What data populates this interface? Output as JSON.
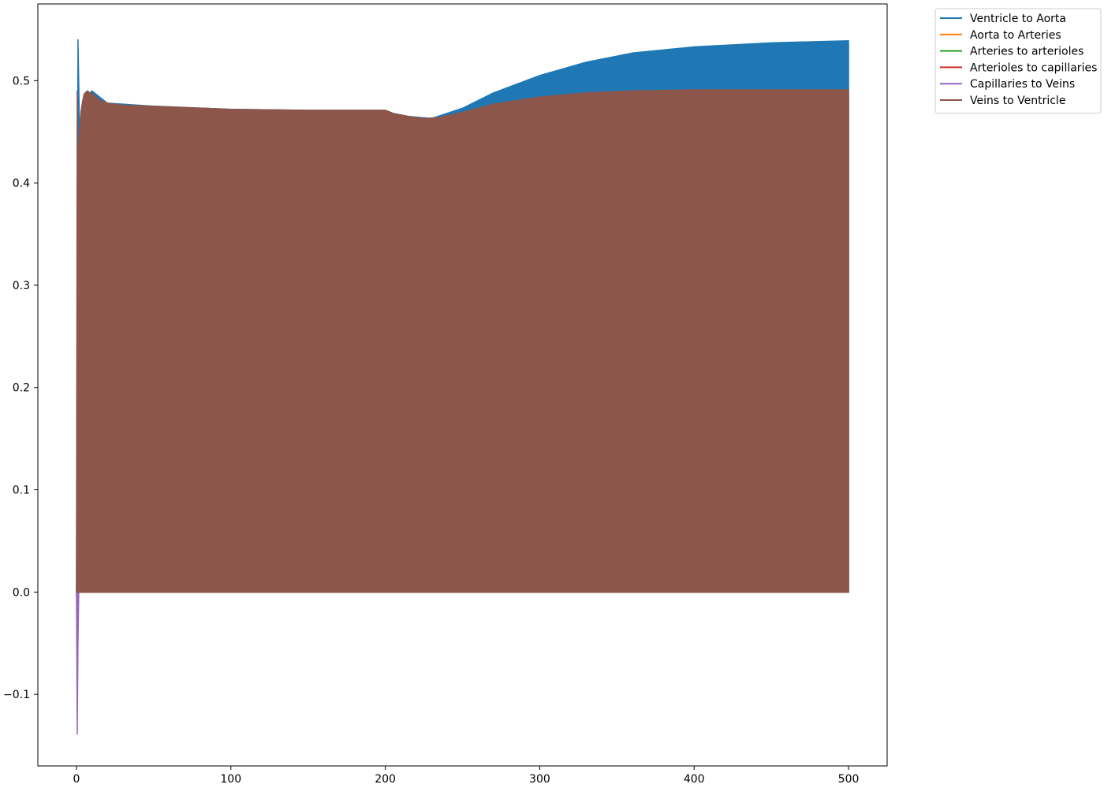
{
  "chart_data": {
    "type": "area",
    "title": "",
    "xlabel": "",
    "ylabel": "",
    "xlim": [
      -25,
      525
    ],
    "ylim": [
      -0.17,
      0.575
    ],
    "x_ticks": [
      0,
      100,
      200,
      300,
      400,
      500
    ],
    "x_tick_labels": [
      "0",
      "100",
      "200",
      "300",
      "400",
      "500"
    ],
    "y_ticks": [
      -0.1,
      0.0,
      0.1,
      0.2,
      0.3,
      0.4,
      0.5
    ],
    "y_tick_labels": [
      "−0.1",
      "0.0",
      "0.1",
      "0.2",
      "0.3",
      "0.4",
      "0.5"
    ],
    "grid": false,
    "legend_position": "outside-top-right",
    "series": [
      {
        "name": "Ventricle to Aorta",
        "color": "#1f77b4",
        "x": [
          0,
          1,
          2,
          5,
          10,
          20,
          50,
          100,
          150,
          200,
          205,
          215,
          230,
          250,
          270,
          300,
          330,
          360,
          400,
          450,
          500
        ],
        "upper": [
          0.0,
          0.54,
          0.45,
          0.48,
          0.49,
          0.478,
          0.475,
          0.472,
          0.471,
          0.471,
          0.468,
          0.465,
          0.463,
          0.473,
          0.488,
          0.505,
          0.518,
          0.527,
          0.533,
          0.537,
          0.539
        ],
        "lower": [
          0.0,
          0.0,
          0.0,
          0.0,
          0.0,
          0.0,
          0.0,
          0.0,
          0.0,
          0.0,
          0.0,
          0.0,
          0.0,
          0.0,
          0.0,
          0.0,
          0.0,
          0.0,
          0.0,
          0.0,
          0.0
        ]
      },
      {
        "name": "Aorta to Arteries",
        "color": "#ff7f0e",
        "x": [
          0,
          500
        ],
        "upper": [
          0.0,
          0.0
        ],
        "lower": [
          0.0,
          0.0
        ]
      },
      {
        "name": "Arteries to arterioles",
        "color": "#2ca02c",
        "x": [
          0,
          500
        ],
        "upper": [
          0.0,
          0.0
        ],
        "lower": [
          0.0,
          0.0
        ]
      },
      {
        "name": "Arterioles to capillaries",
        "color": "#d62728",
        "x": [
          0,
          500
        ],
        "upper": [
          0.0,
          0.0
        ],
        "lower": [
          0.0,
          0.0
        ]
      },
      {
        "name": "Capillaries to Veins",
        "color": "#9467bd",
        "x": [
          0,
          0.5,
          1,
          1.5
        ],
        "upper": [
          0.0,
          0.0,
          0.0,
          0.0
        ],
        "lower": [
          0.0,
          -0.139,
          -0.05,
          0.0
        ]
      },
      {
        "name": "Veins to Ventricle",
        "color": "#8c564b",
        "x": [
          0,
          0.5,
          1,
          2,
          3,
          4,
          5,
          7,
          10,
          15,
          20,
          30,
          50,
          100,
          150,
          200,
          205,
          215,
          225,
          235,
          250,
          270,
          300,
          330,
          360,
          400,
          450,
          500
        ],
        "upper": [
          0.0,
          0.49,
          0.4,
          0.45,
          0.47,
          0.48,
          0.487,
          0.49,
          0.487,
          0.481,
          0.478,
          0.476,
          0.475,
          0.472,
          0.471,
          0.471,
          0.468,
          0.465,
          0.463,
          0.464,
          0.469,
          0.477,
          0.484,
          0.488,
          0.49,
          0.491,
          0.491,
          0.491
        ],
        "lower": [
          0.0,
          0.0,
          0.0,
          0.0,
          0.0,
          0.0,
          0.0,
          0.0,
          0.0,
          0.0,
          0.0,
          0.0,
          0.0,
          0.0,
          0.0,
          0.0,
          0.0,
          0.0,
          0.0,
          0.0,
          0.0,
          0.0,
          0.0,
          0.0,
          0.0,
          0.0,
          0.0,
          0.0
        ]
      }
    ]
  }
}
